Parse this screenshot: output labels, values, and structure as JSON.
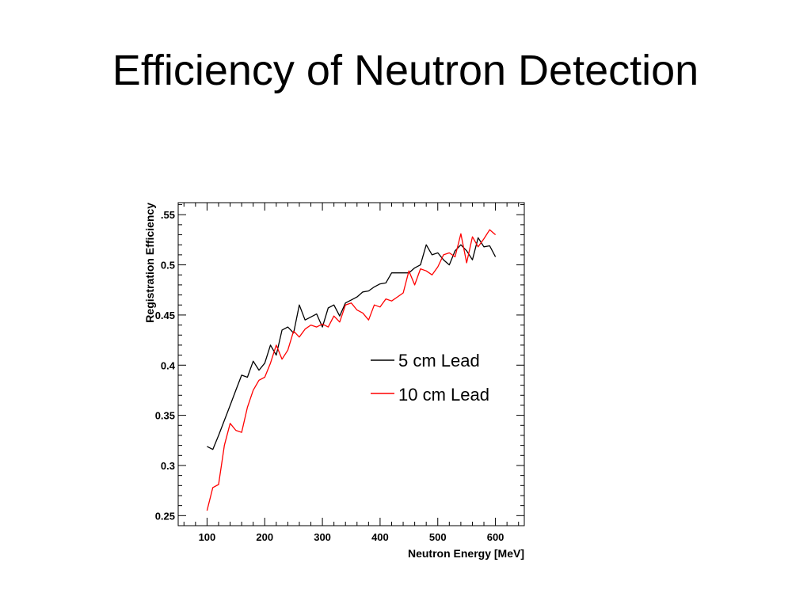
{
  "slide": {
    "title": "Efficiency of Neutron Detection"
  },
  "chart_data": {
    "type": "line",
    "title": "",
    "xlabel": "Neutron Energy [MeV]",
    "ylabel": "Registration Efficiency",
    "xlim": [
      50,
      650
    ],
    "ylim": [
      0.24,
      0.562
    ],
    "xticks": [
      100,
      200,
      300,
      400,
      500,
      600
    ],
    "yticks": [
      0.25,
      0.3,
      0.35,
      0.4,
      0.45,
      0.5,
      0.55
    ],
    "ytick_labels": [
      "0.25",
      "0.3",
      "0.35",
      "0.4",
      "0.45",
      "0.5",
      ".55"
    ],
    "grid": false,
    "legend": "right",
    "series": [
      {
        "name": "5 cm Lead",
        "color": "#000000",
        "x": [
          100,
          110,
          120,
          130,
          140,
          150,
          160,
          170,
          180,
          190,
          200,
          210,
          220,
          230,
          240,
          250,
          260,
          270,
          280,
          290,
          300,
          310,
          320,
          330,
          340,
          350,
          360,
          370,
          380,
          390,
          400,
          410,
          420,
          430,
          440,
          450,
          460,
          470,
          480,
          490,
          500,
          510,
          520,
          530,
          540,
          550,
          560,
          570,
          580,
          590,
          600
        ],
        "y": [
          0.319,
          0.316,
          0.33,
          0.345,
          0.36,
          0.375,
          0.39,
          0.388,
          0.404,
          0.395,
          0.402,
          0.42,
          0.41,
          0.435,
          0.438,
          0.432,
          0.46,
          0.445,
          0.448,
          0.451,
          0.438,
          0.457,
          0.46,
          0.449,
          0.462,
          0.465,
          0.468,
          0.473,
          0.474,
          0.478,
          0.481,
          0.482,
          0.492,
          0.492,
          0.492,
          0.492,
          0.497,
          0.5,
          0.52,
          0.51,
          0.512,
          0.505,
          0.5,
          0.514,
          0.52,
          0.514,
          0.505,
          0.527,
          0.518,
          0.519,
          0.508
        ]
      },
      {
        "name": "10 cm Lead",
        "color": "#ff0000",
        "x": [
          100,
          110,
          120,
          130,
          140,
          150,
          160,
          170,
          180,
          190,
          200,
          210,
          220,
          230,
          240,
          250,
          260,
          270,
          280,
          290,
          300,
          310,
          320,
          330,
          340,
          350,
          360,
          370,
          380,
          390,
          400,
          410,
          420,
          430,
          440,
          450,
          460,
          470,
          480,
          490,
          500,
          510,
          520,
          530,
          540,
          550,
          560,
          570,
          580,
          590,
          600
        ],
        "y": [
          0.255,
          0.278,
          0.281,
          0.32,
          0.342,
          0.335,
          0.333,
          0.358,
          0.375,
          0.385,
          0.388,
          0.402,
          0.42,
          0.406,
          0.415,
          0.434,
          0.428,
          0.436,
          0.44,
          0.438,
          0.441,
          0.438,
          0.449,
          0.443,
          0.46,
          0.462,
          0.455,
          0.452,
          0.445,
          0.46,
          0.458,
          0.466,
          0.464,
          0.468,
          0.472,
          0.494,
          0.48,
          0.496,
          0.494,
          0.49,
          0.498,
          0.51,
          0.512,
          0.508,
          0.531,
          0.502,
          0.528,
          0.518,
          0.526,
          0.535,
          0.53
        ]
      }
    ]
  }
}
